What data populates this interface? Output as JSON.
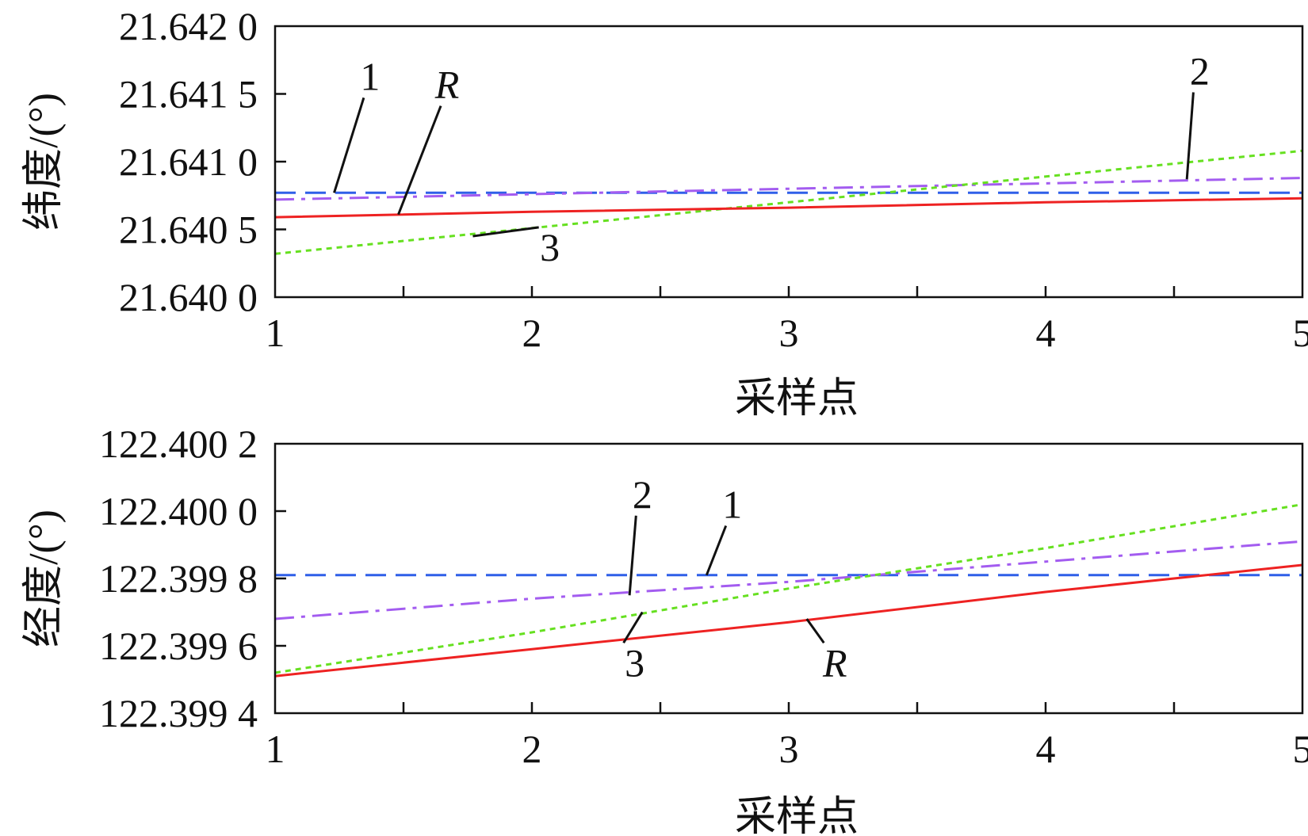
{
  "chart_data": [
    {
      "type": "line",
      "xlabel": "采样点",
      "ylabel": "纬度/(°)",
      "x": [
        1,
        2,
        3,
        4,
        5
      ],
      "xticks": [
        "1",
        "2",
        "3",
        "4",
        "5"
      ],
      "ylim": [
        21.64,
        21.642
      ],
      "yticks": [
        {
          "value": 21.64,
          "label": "21.640 0"
        },
        {
          "value": 21.6405,
          "label": "21.640 5"
        },
        {
          "value": 21.641,
          "label": "21.641 0"
        },
        {
          "value": 21.6415,
          "label": "21.641 5"
        },
        {
          "value": 21.642,
          "label": "21.642 0"
        }
      ],
      "grid": false,
      "series": [
        {
          "key": "1",
          "color": "#2f5fe8",
          "dash": "dashed",
          "values": [
            21.64077,
            21.64077,
            21.64077,
            21.64077,
            21.64077
          ]
        },
        {
          "key": "2",
          "color": "#a35cf0",
          "dash": "dashdot",
          "values": [
            21.64072,
            21.64076,
            21.6408,
            21.64084,
            21.64088
          ]
        },
        {
          "key": "3",
          "color": "#66e020",
          "dash": "dotted",
          "values": [
            21.64032,
            21.64051,
            21.6407,
            21.64089,
            21.64108
          ]
        },
        {
          "key": "R",
          "color": "#ee2222",
          "dash": "solid",
          "values": [
            21.64059,
            21.64063,
            21.64066,
            21.6407,
            21.64073
          ]
        }
      ],
      "annotations": [
        {
          "text": "1",
          "italic": false,
          "label_x": 1.37,
          "label_y": 21.64153,
          "target_x": 1.23,
          "target_y": 21.64077
        },
        {
          "text": "R",
          "italic": true,
          "label_x": 1.67,
          "label_y": 21.64147,
          "target_x": 1.48,
          "target_y": 21.64061
        },
        {
          "text": "2",
          "italic": false,
          "label_x": 4.6,
          "label_y": 21.64157,
          "target_x": 4.55,
          "target_y": 21.64087
        },
        {
          "text": "3",
          "italic": false,
          "label_x": 2.07,
          "label_y": 21.64027,
          "target_x": 1.77,
          "target_y": 21.64045
        }
      ]
    },
    {
      "type": "line",
      "xlabel": "采样点",
      "ylabel": "经度/(°)",
      "x": [
        1,
        2,
        3,
        4,
        5
      ],
      "xticks": [
        "1",
        "2",
        "3",
        "4",
        "5"
      ],
      "ylim": [
        122.3994,
        122.4002
      ],
      "yticks": [
        {
          "value": 122.3994,
          "label": "122.399 4"
        },
        {
          "value": 122.3996,
          "label": "122.399 6"
        },
        {
          "value": 122.3998,
          "label": "122.399 8"
        },
        {
          "value": 122.4,
          "label": "122.400 0"
        },
        {
          "value": 122.4002,
          "label": "122.400 2"
        }
      ],
      "grid": false,
      "series": [
        {
          "key": "1",
          "color": "#2f5fe8",
          "dash": "dashed",
          "values": [
            122.39981,
            122.39981,
            122.39981,
            122.39981,
            122.39981
          ]
        },
        {
          "key": "2",
          "color": "#a35cf0",
          "dash": "dashdot",
          "values": [
            122.39968,
            122.39974,
            122.39979,
            122.39985,
            122.39991
          ]
        },
        {
          "key": "3",
          "color": "#66e020",
          "dash": "dotted",
          "values": [
            122.39952,
            122.39964,
            122.39977,
            122.39989,
            122.40002
          ]
        },
        {
          "key": "R",
          "color": "#ee2222",
          "dash": "solid",
          "values": [
            122.39951,
            122.39959,
            122.39967,
            122.39976,
            122.39984
          ]
        }
      ],
      "annotations": [
        {
          "text": "2",
          "italic": false,
          "label_x": 2.43,
          "label_y": 122.40001,
          "target_x": 2.38,
          "target_y": 122.39975
        },
        {
          "text": "1",
          "italic": false,
          "label_x": 2.78,
          "label_y": 122.39998,
          "target_x": 2.68,
          "target_y": 122.39981
        },
        {
          "text": "3",
          "italic": false,
          "label_x": 2.4,
          "label_y": 122.39951,
          "target_x": 2.43,
          "target_y": 122.3997
        },
        {
          "text": "R",
          "italic": true,
          "label_x": 3.18,
          "label_y": 122.39951,
          "target_x": 3.07,
          "target_y": 122.39968
        }
      ]
    }
  ]
}
